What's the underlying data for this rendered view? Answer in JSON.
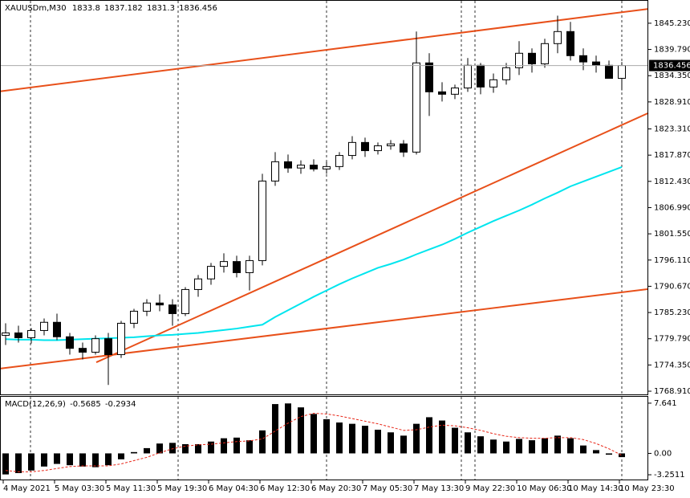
{
  "chart_data": [
    {
      "type": "candlestick",
      "title": "XAUUSDm,M30",
      "categories": [
        "4 May 2021",
        null,
        null,
        null,
        "5 May 03:30",
        null,
        null,
        null,
        "5 May 11:30",
        null,
        null,
        null,
        "5 May 19:30",
        null,
        null,
        null,
        "6 May 04:30",
        null,
        null,
        null,
        "6 May 12:30",
        null,
        null,
        null,
        "6 May 20:30",
        null,
        null,
        null,
        "7 May 05:30",
        null,
        null,
        null,
        "7 May 13:30",
        null,
        null,
        null,
        "9 May 22:30",
        null,
        null,
        null,
        "10 May 06:30",
        null,
        null,
        null,
        "10 May 14:30",
        null,
        null,
        null,
        "10 May 23:30"
      ],
      "open": [
        1780.5,
        1781.0,
        1780.0,
        1781.5,
        1783.2,
        1780.2,
        1777.8,
        1777.0,
        1779.8,
        1776.5,
        1783.0,
        1785.5,
        1787.2,
        1786.8,
        1785.0,
        1790.0,
        1792.2,
        1794.8,
        1795.8,
        1793.5,
        1796.0,
        1812.5,
        1816.5,
        1815.2,
        1815.8,
        1815.0,
        1815.5,
        1817.8,
        1820.5,
        1818.8,
        1819.8,
        1820.2,
        1818.5,
        1837.0,
        1831.0,
        1830.5,
        1831.8,
        1836.5,
        1832.0,
        1833.5,
        1836.0,
        1839.0,
        1836.8,
        1841.0,
        1843.5,
        1838.5,
        1837.2,
        1836.5,
        1833.8
      ],
      "high": [
        1783.0,
        1782.5,
        1782.0,
        1784.0,
        1785.0,
        1781.0,
        1779.0,
        1780.5,
        1781.0,
        1783.5,
        1786.0,
        1788.0,
        1789.0,
        1788.0,
        1790.5,
        1793.0,
        1795.5,
        1797.5,
        1797.0,
        1797.0,
        1814.0,
        1818.5,
        1818.0,
        1816.8,
        1817.0,
        1816.5,
        1818.5,
        1821.8,
        1821.5,
        1820.5,
        1821.0,
        1821.0,
        1843.5,
        1839.0,
        1833.0,
        1832.5,
        1838.0,
        1837.0,
        1834.8,
        1837.0,
        1841.5,
        1840.0,
        1842.0,
        1846.8,
        1845.5,
        1840.0,
        1838.5,
        1837.5,
        1837.182
      ],
      "low": [
        1778.5,
        1779.0,
        1778.8,
        1780.5,
        1779.5,
        1776.5,
        1775.5,
        1776.5,
        1770.2,
        1775.8,
        1782.0,
        1784.5,
        1785.5,
        1782.5,
        1784.5,
        1788.5,
        1791.0,
        1793.5,
        1792.5,
        1789.8,
        1795.0,
        1811.5,
        1814.2,
        1814.0,
        1814.5,
        1814.0,
        1814.8,
        1817.0,
        1817.5,
        1818.0,
        1819.0,
        1817.5,
        1818.0,
        1826.0,
        1829.0,
        1829.5,
        1831.0,
        1830.5,
        1830.8,
        1832.5,
        1834.5,
        1835.0,
        1836.0,
        1839.0,
        1837.5,
        1835.5,
        1835.0,
        1834.0,
        1831.3
      ],
      "close": [
        1781.0,
        1780.0,
        1781.5,
        1783.2,
        1780.2,
        1777.8,
        1777.0,
        1779.8,
        1776.5,
        1783.0,
        1785.5,
        1787.2,
        1786.8,
        1785.0,
        1790.0,
        1792.2,
        1794.8,
        1795.8,
        1793.5,
        1796.0,
        1812.5,
        1816.5,
        1815.2,
        1815.8,
        1815.0,
        1815.5,
        1817.8,
        1820.5,
        1818.8,
        1819.8,
        1820.2,
        1818.5,
        1837.0,
        1831.0,
        1830.5,
        1831.8,
        1836.5,
        1832.0,
        1833.5,
        1836.0,
        1839.0,
        1836.8,
        1841.0,
        1843.5,
        1838.5,
        1837.2,
        1836.5,
        1833.8,
        1836.456
      ],
      "ma": [
        1779.7,
        1779.6,
        1779.6,
        1779.5,
        1779.5,
        1779.6,
        1779.7,
        1779.8,
        1779.9,
        1780.0,
        1780.1,
        1780.3,
        1780.5,
        1780.6,
        1780.8,
        1781.0,
        1781.3,
        1781.6,
        1781.9,
        1782.3,
        1782.7,
        1784.3,
        1785.7,
        1787.1,
        1788.5,
        1789.8,
        1791.1,
        1792.3,
        1793.4,
        1794.5,
        1795.3,
        1796.2,
        1797.3,
        1798.3,
        1799.3,
        1800.5,
        1801.8,
        1803.0,
        1804.2,
        1805.3,
        1806.4,
        1807.6,
        1808.9,
        1810.1,
        1811.4,
        1812.4,
        1813.4,
        1814.4,
        1815.4
      ],
      "ma_color": "#00e5ee",
      "trendlines": [
        [
          1831.1,
          1848.2
        ],
        [
          1774.9,
          1826.6
        ],
        [
          1773.6,
          1790.1
        ]
      ],
      "trendline_color": "#e8501a",
      "ylim": [
        1768.25,
        1849.88
      ],
      "yticks": [
        {
          "value": 1845.23,
          "label": "1845.230"
        },
        {
          "value": 1839.79,
          "label": "1839.790"
        },
        {
          "value": 1834.35,
          "label": "1834.350"
        },
        {
          "value": 1828.91,
          "label": "1828.910"
        },
        {
          "value": 1823.31,
          "label": "1823.310"
        },
        {
          "value": 1817.87,
          "label": "1817.870"
        },
        {
          "value": 1812.43,
          "label": "1812.430"
        },
        {
          "value": 1806.99,
          "label": "1806.990"
        },
        {
          "value": 1801.55,
          "label": "1801.550"
        },
        {
          "value": 1796.11,
          "label": "1796.110"
        },
        {
          "value": 1790.67,
          "label": "1790.670"
        },
        {
          "value": 1785.23,
          "label": "1785.230"
        },
        {
          "value": 1779.79,
          "label": "1779.790"
        },
        {
          "value": 1774.35,
          "label": "1774.350"
        },
        {
          "value": 1768.91,
          "label": "1768.910"
        }
      ]
    },
    {
      "type": "macd",
      "title": "MACD(12,26,9)",
      "values": [
        -3.2,
        -3.0,
        -2.6,
        -2.0,
        -1.6,
        -1.8,
        -2.0,
        -2.1,
        -1.8,
        -0.9,
        0.2,
        0.8,
        1.5,
        1.6,
        1.4,
        1.4,
        1.8,
        2.3,
        2.4,
        2.0,
        3.5,
        7.5,
        7.6,
        7.0,
        6.0,
        5.2,
        4.7,
        4.5,
        4.2,
        3.6,
        3.2,
        2.7,
        4.5,
        5.5,
        5.0,
        3.9,
        3.2,
        2.6,
        2.1,
        1.8,
        2.2,
        2.0,
        2.3,
        2.7,
        2.3,
        1.2,
        0.5,
        -0.2,
        -0.5685
      ],
      "signal": [
        -2.6,
        -2.8,
        -2.8,
        -2.6,
        -2.3,
        -2.0,
        -1.9,
        -1.9,
        -1.9,
        -1.6,
        -1.1,
        -0.6,
        0.1,
        0.7,
        1.1,
        1.3,
        1.4,
        1.6,
        1.8,
        1.9,
        2.2,
        3.4,
        4.6,
        5.6,
        6.1,
        6.0,
        5.7,
        5.3,
        4.9,
        4.5,
        4.0,
        3.5,
        3.6,
        4.0,
        4.3,
        4.2,
        3.9,
        3.5,
        3.0,
        2.6,
        2.4,
        2.3,
        2.3,
        2.4,
        2.4,
        2.1,
        1.5,
        0.7,
        -0.2934
      ],
      "color": "#000000",
      "signal_color": "#e8281a",
      "ylim": [
        -3.977,
        8.61
      ],
      "yticks": [
        7.641,
        {
          "value": 0,
          "label": "0.00"
        },
        -3.2511
      ]
    }
  ]
}
